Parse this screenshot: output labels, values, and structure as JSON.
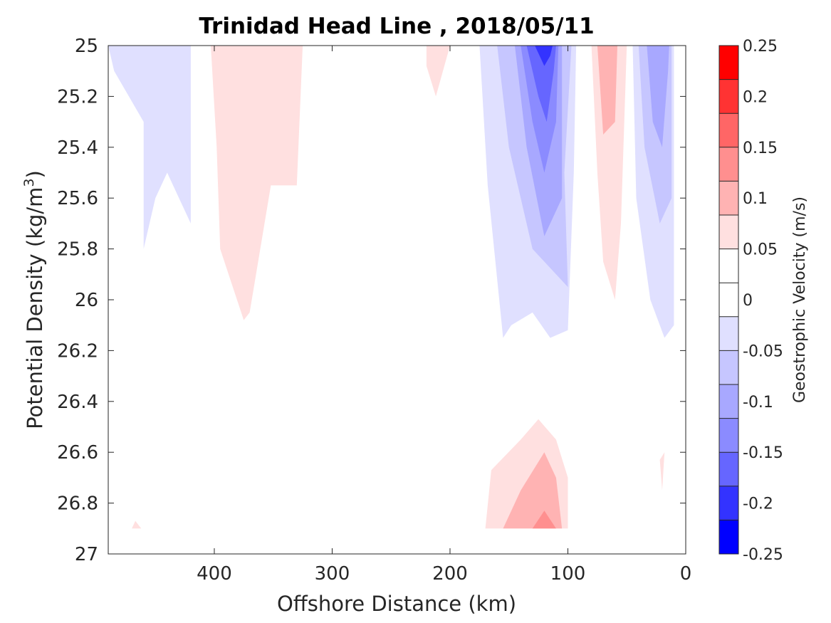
{
  "chart_data": {
    "type": "contour",
    "title": "Trinidad Head Line , 2018/05/11",
    "xlabel": "Offshore Distance (km)",
    "ylabel_main": "Potential Density (kg/m",
    "ylabel_sup": "3",
    "ylabel_close": ")",
    "xlim": [
      490,
      0
    ],
    "ylim": [
      25,
      27
    ],
    "x_reversed": true,
    "y_reversed": true,
    "x_ticks": [
      400,
      300,
      200,
      100,
      0
    ],
    "x_tick_labels": [
      "400",
      "300",
      "200",
      "100",
      "0"
    ],
    "y_ticks": [
      25,
      25.2,
      25.4,
      25.6,
      25.8,
      26,
      26.2,
      26.4,
      26.6,
      26.8,
      27
    ],
    "y_tick_labels": [
      "25",
      "25.2",
      "25.4",
      "25.6",
      "25.8",
      "26",
      "26.2",
      "26.4",
      "26.6",
      "26.8",
      "27"
    ],
    "colorbar": {
      "label": "Geostrophic Velocity (m/s)",
      "range": [
        -0.25,
        0.25
      ],
      "step": 0.025,
      "ticks": [
        0.25,
        0.2,
        0.15,
        0.1,
        0.05,
        0,
        -0.05,
        -0.1,
        -0.15,
        -0.2,
        -0.25
      ],
      "tick_labels": [
        "0.25",
        "0.2",
        "0.15",
        "0.1",
        "0.05",
        "0",
        "-0.05",
        "-0.1",
        "-0.15",
        "-0.2",
        "-0.25"
      ],
      "level_colors": [
        "#ff0000",
        "#ff3333",
        "#ff6666",
        "#ff8f8f",
        "#ffb3b3",
        "#ffe0e0",
        "#ffffff",
        "#ffffff",
        "#e0e0ff",
        "#c6c6ff",
        "#a8a8ff",
        "#8b8bff",
        "#6666ff",
        "#3333ff",
        "#0000ff"
      ]
    },
    "regions": [
      {
        "name": "neg-shelf-far",
        "fill": "#e0e0ff",
        "points": [
          [
            490,
            25
          ],
          [
            485,
            25.1
          ],
          [
            460,
            25.3
          ],
          [
            460,
            25.8
          ],
          [
            450,
            25.6
          ],
          [
            440,
            25.5
          ],
          [
            420,
            25.7
          ],
          [
            420,
            25
          ],
          [
            490,
            25
          ]
        ]
      },
      {
        "name": "pos-slope-400",
        "fill": "#ffe0e0",
        "points": [
          [
            403,
            25
          ],
          [
            398,
            25.4
          ],
          [
            395,
            25.8
          ],
          [
            375,
            26.08
          ],
          [
            370,
            26.05
          ],
          [
            352,
            25.55
          ],
          [
            330,
            25.55
          ],
          [
            325,
            25
          ],
          [
            403,
            25
          ]
        ]
      },
      {
        "name": "pos-200-wisp",
        "fill": "#ffe0e0",
        "points": [
          [
            220,
            25.08
          ],
          [
            212,
            25.2
          ],
          [
            200,
            25
          ],
          [
            220,
            25
          ]
        ]
      },
      {
        "name": "neg-jet-0.025",
        "fill": "#e0e0ff",
        "points": [
          [
            175,
            25
          ],
          [
            168,
            25.55
          ],
          [
            155,
            26.15
          ],
          [
            148,
            26.1
          ],
          [
            130,
            26.05
          ],
          [
            115,
            26.15
          ],
          [
            100,
            26.12
          ],
          [
            95,
            25.5
          ],
          [
            93,
            25
          ],
          [
            175,
            25
          ]
        ]
      },
      {
        "name": "neg-jet-0.05",
        "fill": "#c6c6ff",
        "points": [
          [
            160,
            25
          ],
          [
            150,
            25.4
          ],
          [
            130,
            25.8
          ],
          [
            100,
            25.95
          ],
          [
            103,
            25.5
          ],
          [
            97,
            25
          ],
          [
            160,
            25
          ]
        ]
      },
      {
        "name": "neg-jet-0.075",
        "fill": "#a8a8ff",
        "points": [
          [
            145,
            25
          ],
          [
            135,
            25.4
          ],
          [
            120,
            25.75
          ],
          [
            105,
            25.6
          ],
          [
            105,
            25
          ],
          [
            145,
            25
          ]
        ]
      },
      {
        "name": "neg-jet-0.1",
        "fill": "#8b8bff",
        "points": [
          [
            140,
            25
          ],
          [
            130,
            25.3
          ],
          [
            120,
            25.5
          ],
          [
            110,
            25.3
          ],
          [
            108,
            25
          ],
          [
            140,
            25
          ]
        ]
      },
      {
        "name": "neg-jet-0.125",
        "fill": "#6666ff",
        "points": [
          [
            135,
            25
          ],
          [
            125,
            25.2
          ],
          [
            118,
            25.3
          ],
          [
            112,
            25.1
          ],
          [
            110,
            25
          ],
          [
            135,
            25
          ]
        ]
      },
      {
        "name": "neg-jet-0.15",
        "fill": "#3333ff",
        "points": [
          [
            128,
            25
          ],
          [
            120,
            25.08
          ],
          [
            115,
            25.04
          ],
          [
            113,
            25
          ],
          [
            128,
            25
          ]
        ]
      },
      {
        "name": "pos-inshore-0.025",
        "fill": "#ffe0e0",
        "points": [
          [
            80,
            25
          ],
          [
            75,
            25.5
          ],
          [
            70,
            25.85
          ],
          [
            60,
            26
          ],
          [
            55,
            25.7
          ],
          [
            50,
            25
          ],
          [
            80,
            25
          ]
        ]
      },
      {
        "name": "pos-inshore-0.05",
        "fill": "#ffb3b3",
        "points": [
          [
            75,
            25
          ],
          [
            70,
            25.35
          ],
          [
            60,
            25.3
          ],
          [
            58,
            25
          ],
          [
            75,
            25
          ]
        ]
      },
      {
        "name": "neg-coast-0.025",
        "fill": "#e0e0ff",
        "points": [
          [
            45,
            25
          ],
          [
            42,
            25.6
          ],
          [
            30,
            26
          ],
          [
            18,
            26.15
          ],
          [
            10,
            26.1
          ],
          [
            10,
            25
          ],
          [
            45,
            25
          ]
        ]
      },
      {
        "name": "neg-coast-0.05",
        "fill": "#c6c6ff",
        "points": [
          [
            40,
            25
          ],
          [
            35,
            25.4
          ],
          [
            22,
            25.7
          ],
          [
            12,
            25.6
          ],
          [
            12,
            25
          ],
          [
            40,
            25
          ]
        ]
      },
      {
        "name": "neg-coast-0.075",
        "fill": "#a8a8ff",
        "points": [
          [
            33,
            25
          ],
          [
            28,
            25.3
          ],
          [
            20,
            25.4
          ],
          [
            15,
            25.1
          ],
          [
            14,
            25
          ],
          [
            33,
            25
          ]
        ]
      },
      {
        "name": "pos-deep-0.025",
        "fill": "#ffe0e0",
        "points": [
          [
            170,
            26.9
          ],
          [
            165,
            26.67
          ],
          [
            140,
            26.55
          ],
          [
            125,
            26.47
          ],
          [
            110,
            26.55
          ],
          [
            100,
            26.7
          ],
          [
            100,
            26.9
          ],
          [
            170,
            26.9
          ]
        ]
      },
      {
        "name": "pos-deep-0.05",
        "fill": "#ffb3b3",
        "points": [
          [
            155,
            26.9
          ],
          [
            140,
            26.75
          ],
          [
            120,
            26.6
          ],
          [
            110,
            26.7
          ],
          [
            105,
            26.9
          ],
          [
            155,
            26.9
          ]
        ]
      },
      {
        "name": "pos-deep-0.075",
        "fill": "#ff8f8f",
        "points": [
          [
            130,
            26.9
          ],
          [
            120,
            26.83
          ],
          [
            110,
            26.9
          ],
          [
            130,
            26.9
          ]
        ]
      },
      {
        "name": "pos-coast-sliver",
        "fill": "#ffe0e0",
        "points": [
          [
            22,
            26.63
          ],
          [
            20,
            26.75
          ],
          [
            18,
            26.6
          ],
          [
            22,
            26.63
          ]
        ]
      },
      {
        "name": "pos-far-bottom-blip",
        "fill": "#ffe0e0",
        "points": [
          [
            470,
            26.9
          ],
          [
            467,
            26.87
          ],
          [
            462,
            26.9
          ],
          [
            470,
            26.9
          ]
        ]
      }
    ]
  }
}
